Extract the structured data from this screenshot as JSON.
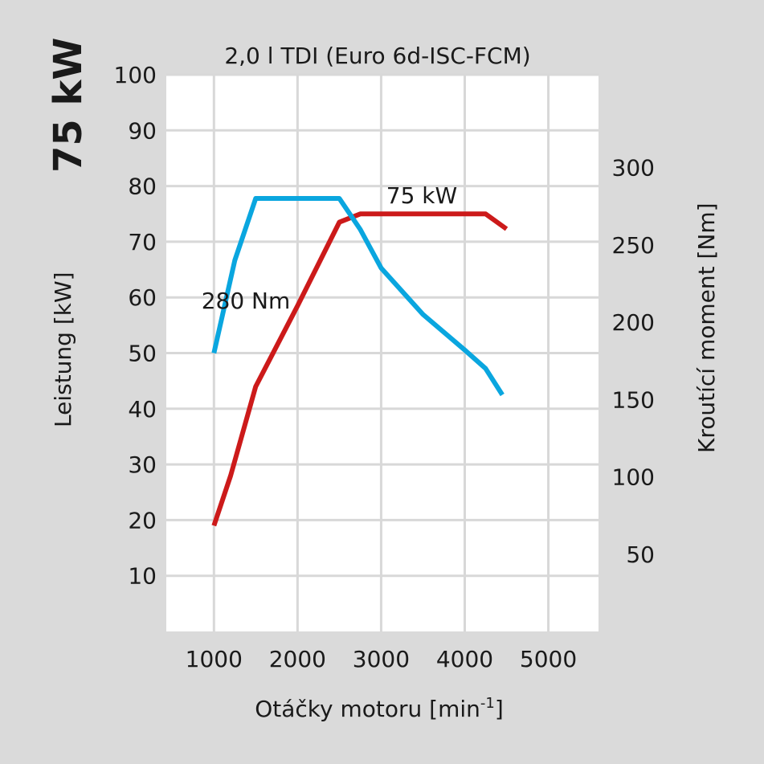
{
  "chart_data": {
    "type": "line",
    "side_label": "75 kW",
    "title": "2,0 l TDI (Euro 6d-ISC-FCM)",
    "xlabel_main": "Otáčky motoru [min",
    "xlabel_sup": "-1",
    "xlabel_end": "]",
    "ylabel": "Leistung [kW]",
    "y2label": "Kroutící moment [Nm]",
    "xlim": [
      430,
      5600
    ],
    "ylim": [
      0,
      100
    ],
    "y2lim": [
      0,
      360
    ],
    "grid": true,
    "x_ticks": [
      "1000",
      "2000",
      "3000",
      "4000",
      "5000"
    ],
    "y_ticks": [
      "10",
      "20",
      "30",
      "40",
      "50",
      "60",
      "70",
      "80",
      "90",
      "100"
    ],
    "y2_ticks": [
      "50",
      "100",
      "150",
      "200",
      "250",
      "300"
    ],
    "colors": {
      "power": "#cc1a1a",
      "torque": "#0aa6df",
      "grid": "#d8d8d8",
      "plot_bg": "#ffffff",
      "page_bg": "#dadada"
    },
    "series": [
      {
        "key": "power",
        "axis": "left",
        "x": [
          1000,
          1200,
          1500,
          2000,
          2500,
          2750,
          3000,
          3500,
          4000,
          4250,
          4500
        ],
        "y": [
          19,
          28,
          44,
          58.5,
          73.5,
          75,
          75,
          75,
          75,
          75,
          72.3
        ]
      },
      {
        "key": "torque",
        "axis": "right",
        "x": [
          1000,
          1250,
          1500,
          2000,
          2500,
          2750,
          3000,
          3500,
          4000,
          4250,
          4450
        ],
        "y": [
          180,
          240,
          280,
          280,
          280,
          260,
          235,
          205,
          182,
          170,
          153
        ]
      }
    ],
    "annotations": [
      {
        "text": "75 kW",
        "series": "power"
      },
      {
        "text": "280 Nm",
        "series": "torque"
      }
    ]
  }
}
